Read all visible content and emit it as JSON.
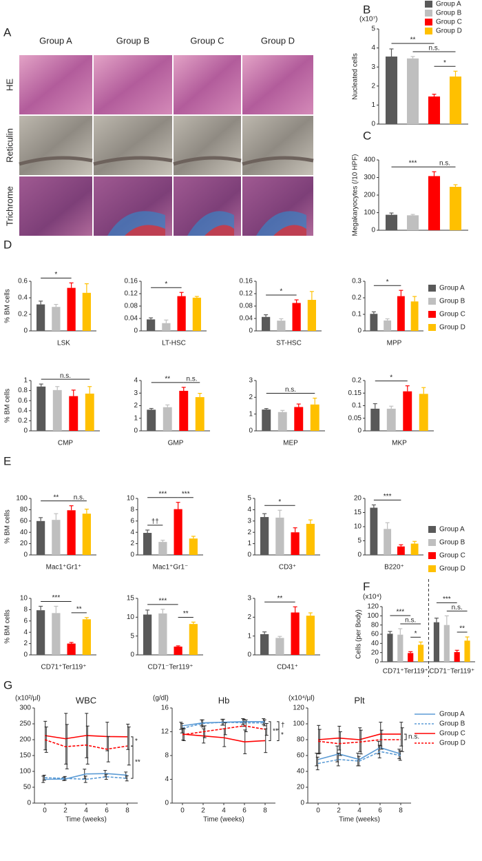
{
  "panel_labels": [
    "A",
    "B",
    "C",
    "D",
    "E",
    "F",
    "G"
  ],
  "histology": {
    "columns": [
      "Group A",
      "Group B",
      "Group C",
      "Group D"
    ],
    "rows": [
      "HE",
      "Reticulin",
      "Trichrome"
    ]
  },
  "legend": [
    {
      "name": "Group A",
      "color": "#595959"
    },
    {
      "name": "Group B",
      "color": "#bfbfbf"
    },
    {
      "name": "Group C",
      "color": "#ff0000"
    },
    {
      "name": "Group D",
      "color": "#ffc000"
    }
  ],
  "line_legend": [
    {
      "name": "Group A",
      "color": "#5b9bd5",
      "dash": false
    },
    {
      "name": "Group B",
      "color": "#5b9bd5",
      "dash": true
    },
    {
      "name": "Group C",
      "color": "#ff0000",
      "dash": false
    },
    {
      "name": "Group D",
      "color": "#ff0000",
      "dash": true
    }
  ],
  "chart_data": [
    {
      "type": "bar",
      "y_label": "Nucleated cells",
      "unit": "(x10⁷)",
      "values": [
        3.55,
        3.45,
        1.45,
        2.5
      ],
      "errors": [
        0.4,
        0.1,
        0.12,
        0.28
      ],
      "ylim": [
        0,
        5
      ],
      "yticks": [
        0,
        1,
        2,
        3,
        4,
        5
      ],
      "annotations": [
        {
          "text": "*",
          "from": 2,
          "to": 3
        },
        {
          "text": "n.s.",
          "from": 1,
          "to": 3
        },
        {
          "text": "**",
          "from": 0,
          "to": 2
        }
      ]
    },
    {
      "type": "bar",
      "y_label": "Megakaryocytes (/10 HPF)",
      "values": [
        88,
        85,
        308,
        247
      ],
      "errors": [
        10,
        5,
        25,
        12
      ],
      "ylim": [
        0,
        400
      ],
      "yticks": [
        0,
        100,
        200,
        300,
        400
      ],
      "annotations": [
        {
          "text": "n.s.",
          "from": 2,
          "to": 3
        },
        {
          "text": "***",
          "from": 0,
          "to": 2
        }
      ]
    },
    {
      "type": "bar",
      "y_label": "% BM cells",
      "x_label": "LSK",
      "values": [
        0.32,
        0.29,
        0.52,
        0.46
      ],
      "errors": [
        0.04,
        0.03,
        0.06,
        0.11
      ],
      "ylim": [
        0,
        0.6
      ],
      "yticks": [
        0,
        0.2,
        0.4,
        0.6
      ],
      "annotations": [
        {
          "text": "*",
          "from": 0,
          "to": 2
        }
      ]
    },
    {
      "type": "bar",
      "x_label": "LT-HSC",
      "values": [
        0.037,
        0.025,
        0.112,
        0.107
      ],
      "errors": [
        0.005,
        0.01,
        0.012,
        0.004
      ],
      "ylim": [
        0,
        0.16
      ],
      "yticks": [
        0,
        0.04,
        0.08,
        0.12,
        0.16
      ],
      "annotations": [
        {
          "text": "*",
          "from": 0,
          "to": 2
        }
      ]
    },
    {
      "type": "bar",
      "x_label": "ST-HSC",
      "values": [
        0.045,
        0.033,
        0.09,
        0.1
      ],
      "errors": [
        0.007,
        0.006,
        0.01,
        0.027
      ],
      "ylim": [
        0,
        0.16
      ],
      "yticks": [
        0,
        0.04,
        0.08,
        0.12,
        0.16
      ],
      "annotations": [
        {
          "text": "*",
          "from": 0,
          "to": 2
        }
      ]
    },
    {
      "type": "bar",
      "x_label": "MPP",
      "values": [
        0.103,
        0.063,
        0.21,
        0.178
      ],
      "errors": [
        0.012,
        0.01,
        0.035,
        0.03
      ],
      "ylim": [
        0,
        0.3
      ],
      "yticks": [
        0,
        0.1,
        0.2,
        0.3
      ],
      "annotations": [
        {
          "text": "*",
          "from": 0,
          "to": 2
        }
      ]
    },
    {
      "type": "bar",
      "y_label": "% BM cells",
      "x_label": "CMP",
      "values": [
        0.88,
        0.81,
        0.69,
        0.74
      ],
      "errors": [
        0.05,
        0.07,
        0.12,
        0.14
      ],
      "ylim": [
        0,
        1
      ],
      "yticks": [
        0,
        0.2,
        0.4,
        0.6,
        0.8,
        1
      ],
      "annotations": [
        {
          "text": "n.s.",
          "from": 0,
          "to": 3
        }
      ]
    },
    {
      "type": "bar",
      "x_label": "GMP",
      "values": [
        1.68,
        1.88,
        3.18,
        2.68
      ],
      "errors": [
        0.1,
        0.18,
        0.28,
        0.3
      ],
      "ylim": [
        0,
        4
      ],
      "yticks": [
        0,
        1,
        2,
        3,
        4
      ],
      "annotations": [
        {
          "text": "n.s.",
          "from": 2,
          "to": 3
        },
        {
          "text": "**",
          "from": 0,
          "to": 2
        }
      ]
    },
    {
      "type": "bar",
      "x_label": "MEP",
      "values": [
        1.27,
        1.12,
        1.42,
        1.57
      ],
      "errors": [
        0.06,
        0.1,
        0.18,
        0.38
      ],
      "ylim": [
        0,
        3
      ],
      "yticks": [
        0,
        1,
        2,
        3
      ],
      "annotations": [
        {
          "text": "n.s.",
          "from": 0,
          "to": 3
        }
      ]
    },
    {
      "type": "bar",
      "x_label": "MKP",
      "values": [
        0.088,
        0.088,
        0.157,
        0.147
      ],
      "errors": [
        0.02,
        0.01,
        0.022,
        0.025
      ],
      "ylim": [
        0,
        0.2
      ],
      "yticks": [
        0,
        0.05,
        0.1,
        0.15,
        0.2
      ],
      "annotations": [
        {
          "text": "*",
          "from": 0,
          "to": 2
        }
      ]
    },
    {
      "type": "bar",
      "y_label": "% BM cells",
      "x_label": "Mac1⁺Gr1⁺",
      "values": [
        60,
        62,
        79,
        73
      ],
      "errors": [
        6,
        11,
        8,
        8
      ],
      "ylim": [
        0,
        100
      ],
      "yticks": [
        0,
        20,
        40,
        60,
        80,
        100
      ],
      "annotations": [
        {
          "text": "n.s.",
          "from": 2,
          "to": 3
        },
        {
          "text": "**",
          "from": 0,
          "to": 2
        }
      ]
    },
    {
      "type": "bar",
      "x_label": "Mac1⁺Gr1⁻",
      "values": [
        3.9,
        2.3,
        8.1,
        2.9
      ],
      "errors": [
        0.5,
        0.3,
        1.2,
        0.4
      ],
      "ylim": [
        0,
        10
      ],
      "yticks": [
        0,
        2,
        4,
        6,
        8,
        10
      ],
      "annotations": [
        {
          "text": "††",
          "from": 0,
          "to": 1
        },
        {
          "text": "***",
          "from": 2,
          "to": 3
        },
        {
          "text": "***",
          "from": 0,
          "to": 2
        }
      ]
    },
    {
      "type": "bar",
      "x_label": "CD3⁺",
      "values": [
        3.35,
        3.3,
        2,
        2.75
      ],
      "errors": [
        0.3,
        0.65,
        0.4,
        0.35
      ],
      "ylim": [
        0,
        5
      ],
      "yticks": [
        0,
        1,
        2,
        3,
        4,
        5
      ],
      "annotations": [
        {
          "text": "*",
          "from": 0,
          "to": 2
        }
      ]
    },
    {
      "type": "bar",
      "x_label": "B220⁺",
      "values": [
        16.7,
        9.2,
        3,
        4
      ],
      "errors": [
        1,
        2.2,
        0.6,
        0.8
      ],
      "ylim": [
        0,
        20
      ],
      "yticks": [
        0,
        5,
        10,
        15,
        20
      ],
      "annotations": [
        {
          "text": "***",
          "from": 0,
          "to": 2
        }
      ]
    },
    {
      "type": "bar",
      "y_label": "% BM cells",
      "x_label": "CD71⁺Ter119⁺",
      "values": [
        7.9,
        7.4,
        2,
        6.3
      ],
      "errors": [
        0.7,
        1.2,
        0.2,
        0.3
      ],
      "ylim": [
        0,
        10
      ],
      "yticks": [
        0,
        2,
        4,
        6,
        8,
        10
      ],
      "annotations": [
        {
          "text": "**",
          "from": 2,
          "to": 3
        },
        {
          "text": "***",
          "from": 0,
          "to": 2
        }
      ]
    },
    {
      "type": "bar",
      "x_label": "CD71⁻Ter119⁺",
      "values": [
        10.7,
        11,
        2.2,
        8.2
      ],
      "errors": [
        1.2,
        1.1,
        0.2,
        0.5
      ],
      "ylim": [
        0,
        15
      ],
      "yticks": [
        0,
        5,
        10,
        15
      ],
      "annotations": [
        {
          "text": "**",
          "from": 2,
          "to": 3
        },
        {
          "text": "***",
          "from": 0,
          "to": 2
        }
      ]
    },
    {
      "type": "bar",
      "x_label": "CD41⁺",
      "values": [
        1.1,
        0.9,
        2.25,
        2.08
      ],
      "errors": [
        0.12,
        0.08,
        0.3,
        0.15
      ],
      "ylim": [
        0,
        3
      ],
      "yticks": [
        0,
        1,
        2,
        3
      ],
      "annotations": [
        {
          "text": "**",
          "from": 0,
          "to": 2
        }
      ]
    },
    {
      "type": "grouped_bar",
      "y_label": "Cells (per Body)",
      "unit": "(x10⁴)",
      "ylim": [
        0,
        120
      ],
      "yticks": [
        0,
        20,
        40,
        60,
        80,
        100,
        120
      ],
      "groups": [
        {
          "x_label": "CD71⁺Ter119⁺",
          "values": [
            61,
            59,
            19,
            37
          ],
          "errors": [
            5,
            13,
            3,
            6
          ],
          "annotations": [
            {
              "text": "*",
              "from": 2,
              "to": 3
            },
            {
              "text": "n.s.",
              "from": 1,
              "to": 3
            },
            {
              "text": "***",
              "from": 0,
              "to": 2
            }
          ]
        },
        {
          "x_label": "CD71⁻Ter119⁺",
          "values": [
            86,
            80,
            21,
            46
          ],
          "errors": [
            9,
            20,
            4,
            8
          ],
          "annotations": [
            {
              "text": "**",
              "from": 2,
              "to": 3
            },
            {
              "text": "n.s.",
              "from": 1,
              "to": 3
            },
            {
              "text": "***",
              "from": 0,
              "to": 2
            }
          ]
        }
      ]
    },
    {
      "type": "line",
      "title": "WBC",
      "unit": "(x10²/μl)",
      "x_label": "Time (weeks)",
      "x": [
        0,
        2,
        4,
        6,
        8
      ],
      "xlim": [
        -1,
        9
      ],
      "xticks": [
        0,
        2,
        4,
        6,
        8
      ],
      "ylim": [
        0,
        300
      ],
      "yticks": [
        0,
        50,
        100,
        150,
        200,
        250,
        300
      ],
      "series": [
        {
          "color": "#5b9bd5",
          "dash": false,
          "values": [
            75,
            76,
            92,
            93,
            88
          ],
          "errors": [
            10,
            5,
            15,
            10,
            10
          ]
        },
        {
          "color": "#5b9bd5",
          "dash": true,
          "values": [
            80,
            78,
            75,
            83,
            78
          ],
          "errors": [
            8,
            6,
            10,
            8,
            8
          ]
        },
        {
          "color": "#ff0000",
          "dash": false,
          "values": [
            213,
            203,
            213,
            210,
            209
          ],
          "errors": [
            45,
            80,
            70,
            45,
            40
          ]
        },
        {
          "color": "#ff0000",
          "dash": true,
          "values": [
            200,
            178,
            183,
            170,
            180
          ],
          "errors": [
            40,
            70,
            60,
            40,
            60
          ]
        }
      ],
      "annotations": [
        {
          "text": "*",
          "from": 2,
          "to": 3
        },
        {
          "text": "**",
          "from": 3,
          "to": 1
        }
      ]
    },
    {
      "type": "line",
      "title": "Hb",
      "unit": "(g/dl)",
      "x_label": "Time (weeks)",
      "x": [
        0,
        2,
        4,
        6,
        8
      ],
      "xlim": [
        -1,
        9
      ],
      "xticks": [
        0,
        2,
        4,
        6,
        8
      ],
      "ylim": [
        0,
        16
      ],
      "yticks": [
        0,
        4,
        8,
        12,
        16
      ],
      "series": [
        {
          "color": "#5b9bd5",
          "dash": false,
          "values": [
            13,
            13.5,
            13.6,
            13.7,
            13.7
          ],
          "errors": [
            0.6,
            0.5,
            0.5,
            0.5,
            0.5
          ]
        },
        {
          "color": "#5b9bd5",
          "dash": true,
          "values": [
            12.6,
            13.4,
            13.6,
            13.5,
            13.5
          ],
          "errors": [
            0.8,
            0.6,
            0.5,
            0.6,
            0.5
          ]
        },
        {
          "color": "#ff0000",
          "dash": false,
          "values": [
            11.6,
            11.3,
            11,
            10.3,
            10.5
          ],
          "errors": [
            1,
            1.2,
            1.5,
            2,
            2
          ]
        },
        {
          "color": "#ff0000",
          "dash": true,
          "values": [
            11.5,
            12,
            12.5,
            13,
            12.4
          ],
          "errors": [
            1,
            1,
            1,
            1,
            1
          ]
        }
      ],
      "annotations": [
        {
          "text": "**",
          "from": 0,
          "to": 2
        },
        {
          "text": "†",
          "from": 0,
          "to": 3
        },
        {
          "text": "*",
          "from": 3,
          "to": 2
        }
      ]
    },
    {
      "type": "line",
      "title": "Plt",
      "unit": "(x10⁴/μl)",
      "x_label": "Time (weeks)",
      "x": [
        0,
        2,
        4,
        6,
        8
      ],
      "xlim": [
        -1,
        9
      ],
      "xticks": [
        0,
        2,
        4,
        6,
        8
      ],
      "ylim": [
        0,
        120
      ],
      "yticks": [
        0,
        20,
        40,
        60,
        80,
        100,
        120
      ],
      "series": [
        {
          "color": "#5b9bd5",
          "dash": false,
          "values": [
            55,
            62,
            55,
            70,
            62
          ],
          "errors": [
            8,
            10,
            8,
            8,
            6
          ]
        },
        {
          "color": "#5b9bd5",
          "dash": true,
          "values": [
            50,
            55,
            53,
            65,
            60
          ],
          "errors": [
            8,
            8,
            6,
            8,
            6
          ]
        },
        {
          "color": "#ff0000",
          "dash": false,
          "values": [
            80,
            82,
            80,
            87,
            87
          ],
          "errors": [
            18,
            15,
            15,
            15,
            15
          ]
        },
        {
          "color": "#ff0000",
          "dash": true,
          "values": [
            78,
            75,
            77,
            80,
            80
          ],
          "errors": [
            15,
            15,
            15,
            12,
            15
          ]
        }
      ],
      "annotations": [
        {
          "text": "n.s.",
          "from": 2,
          "to": 3
        }
      ]
    }
  ]
}
